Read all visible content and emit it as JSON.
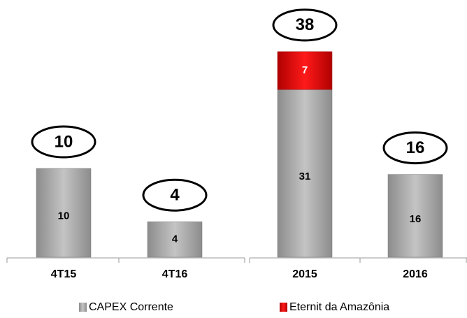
{
  "chart_data": {
    "type": "bar",
    "stacked": true,
    "categories": [
      "4T15",
      "4T16",
      "2015",
      "2016"
    ],
    "series": [
      {
        "name": "CAPEX Corrente",
        "color": "#a6a6a6",
        "values": [
          10,
          4,
          31,
          16
        ]
      },
      {
        "name": "Eternit da Amazônia",
        "color": "#e00000",
        "values": [
          null,
          null,
          7,
          null
        ]
      }
    ],
    "totals": [
      10,
      4,
      38,
      16
    ]
  }
}
